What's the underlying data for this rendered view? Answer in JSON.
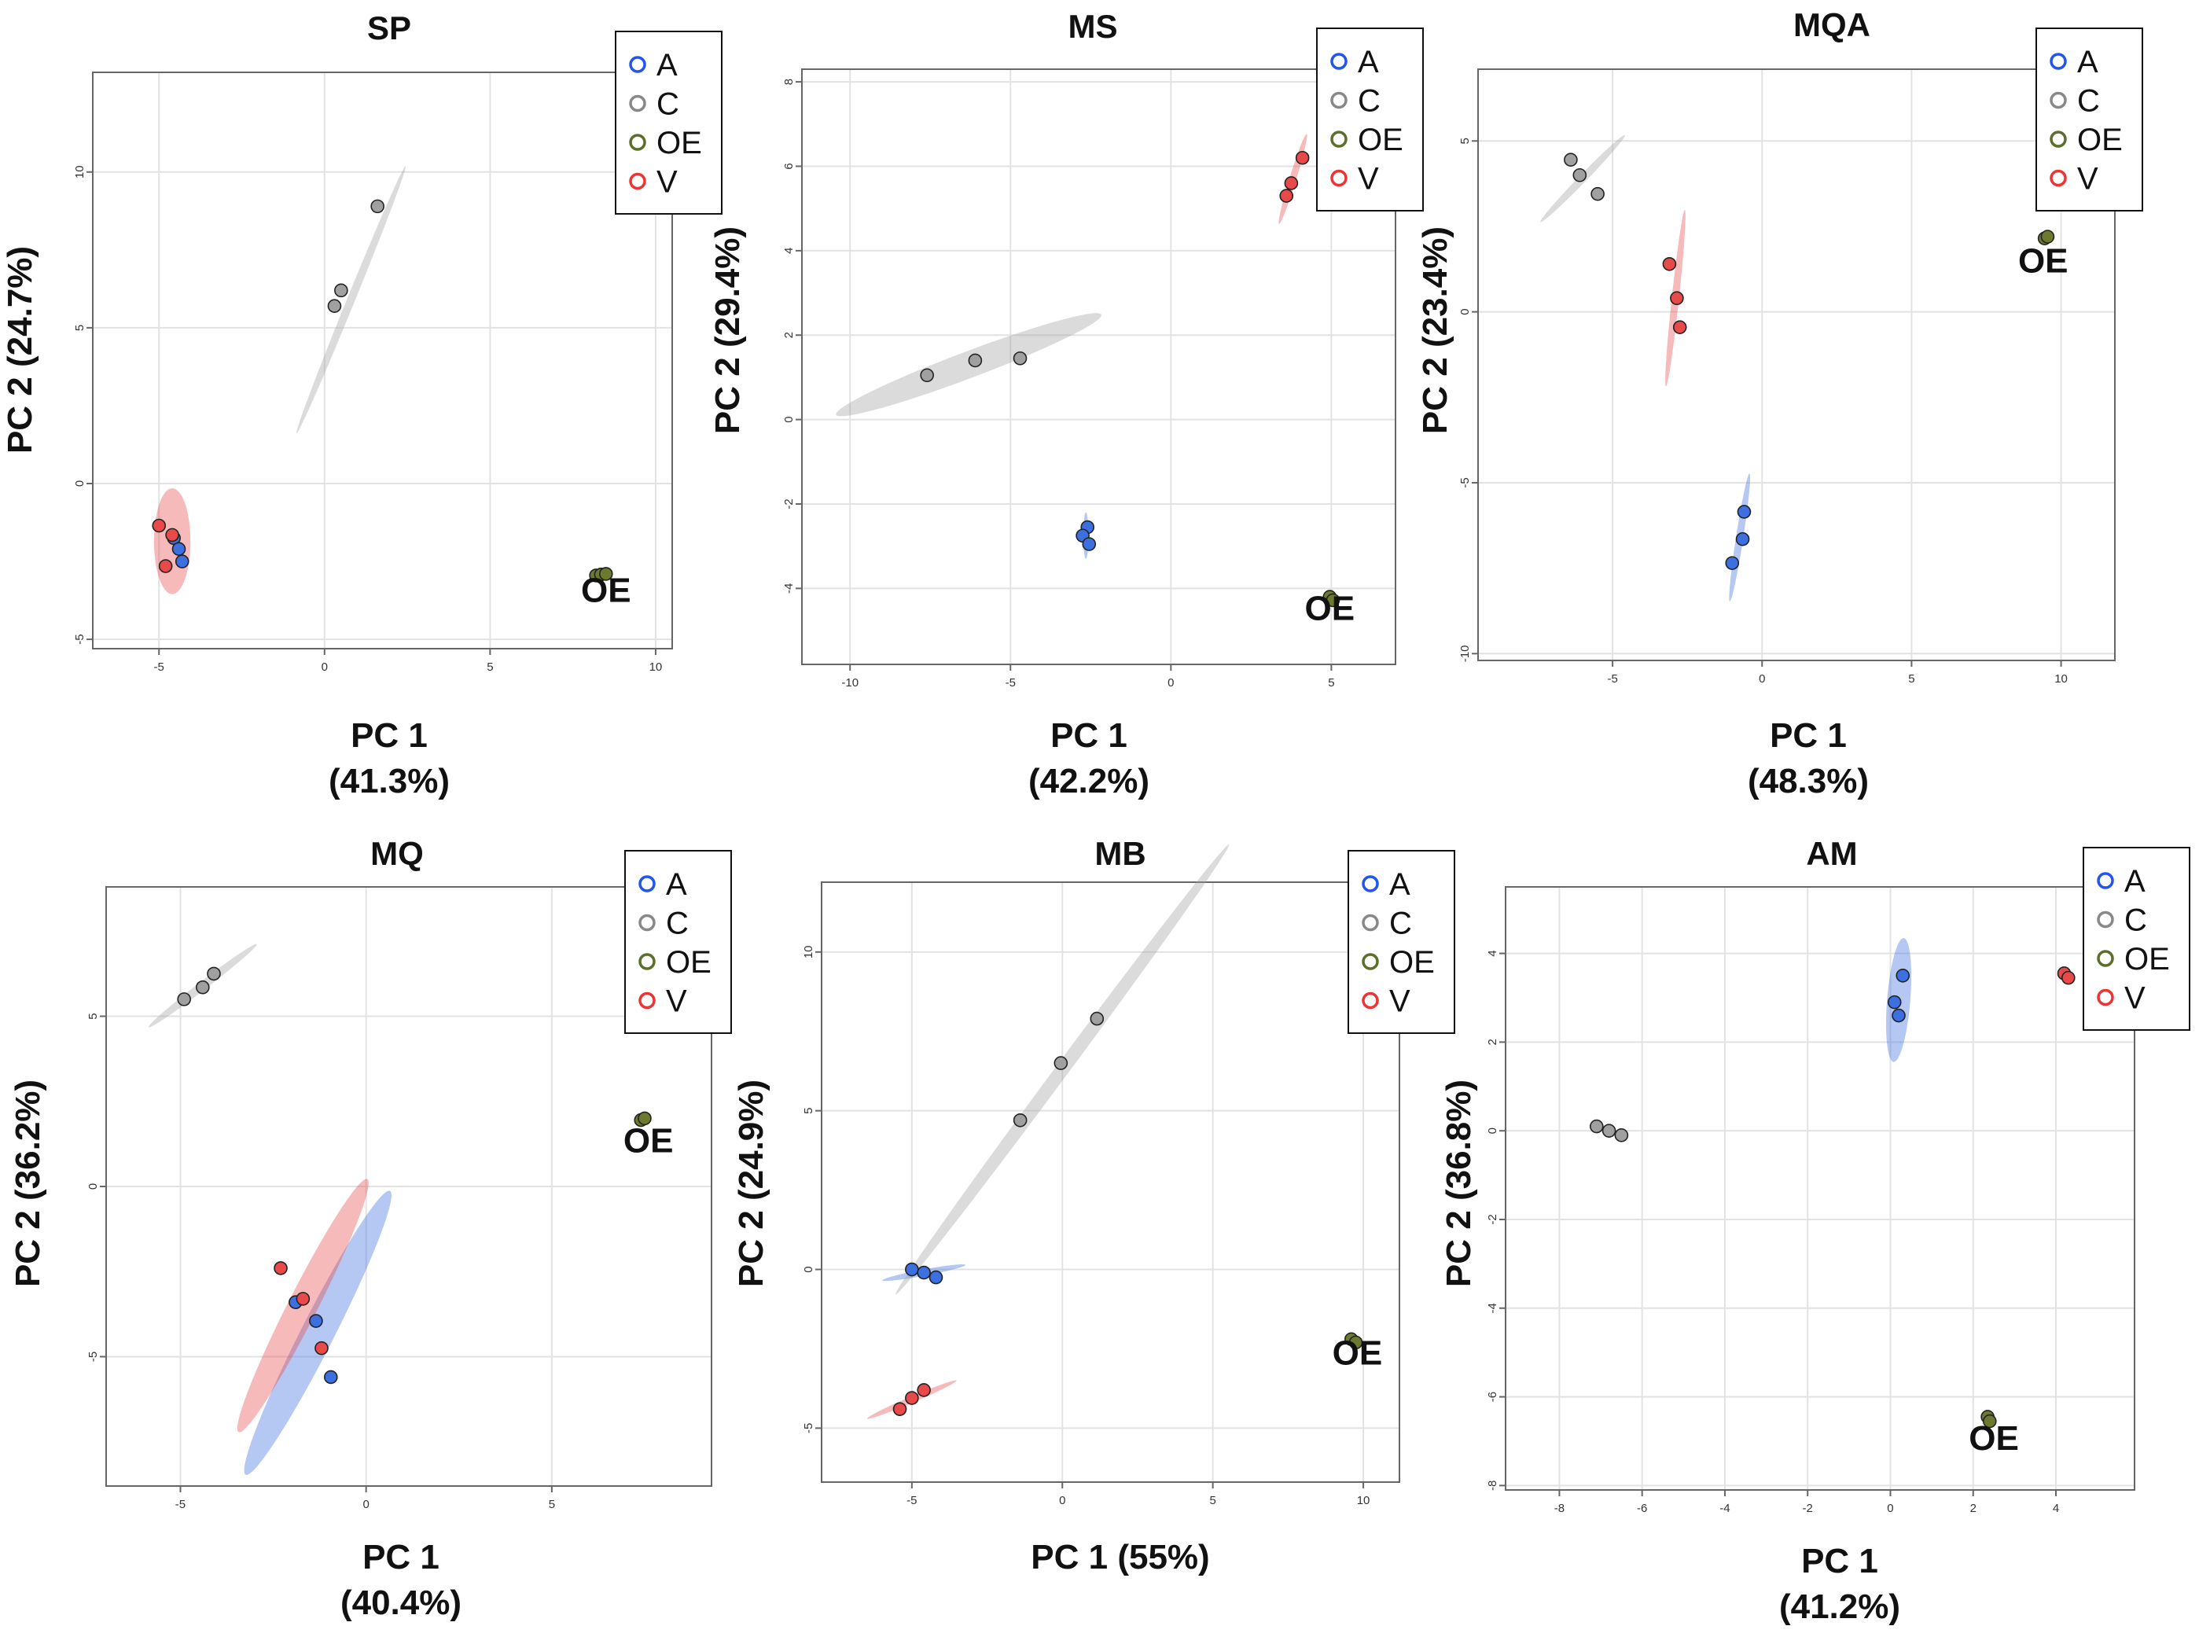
{
  "colors": {
    "A": "#3c6fe0",
    "C": "#a0a0a0",
    "OE": "#6b7a2e",
    "V": "#e84a4a"
  },
  "legend_edge": {
    "A": "#2255ee",
    "C": "#888888",
    "OE": "#5b6e2a",
    "V": "#ee3333"
  },
  "chart_data": [
    {
      "type": "scatter",
      "title": "SP",
      "xlabel": [
        "PC 1",
        "(41.3%)"
      ],
      "ylabel": "PC 2 (24.7%)",
      "xlim": [
        -7,
        10.5
      ],
      "ylim": [
        -5.3,
        13.2
      ],
      "xticks": [
        -5,
        0,
        5,
        10
      ],
      "yticks": [
        -5,
        0,
        5,
        10
      ],
      "legend": [
        "A",
        "C",
        "OE",
        "V"
      ],
      "legend_position": "top-right",
      "grid": true,
      "series": [
        {
          "name": "A",
          "points": [
            [
              -4.55,
              -1.75
            ],
            [
              -4.4,
              -2.1
            ],
            [
              -4.3,
              -2.5
            ]
          ],
          "ellipse": null
        },
        {
          "name": "C",
          "points": [
            [
              0.3,
              5.7
            ],
            [
              0.5,
              6.2
            ],
            [
              1.6,
              8.9
            ]
          ],
          "ellipse": {
            "c": [
              0.8,
              5.9
            ],
            "rx": 4.6,
            "ry": 0.12,
            "angle": 69
          }
        },
        {
          "name": "OE",
          "points": [
            [
              8.2,
              -2.95
            ],
            [
              8.35,
              -2.92
            ],
            [
              8.5,
              -2.9
            ]
          ],
          "ellipse": {
            "c": [
              8.35,
              -2.92
            ],
            "rx": 0.3,
            "ry": 0.07,
            "angle": 0
          }
        },
        {
          "name": "V",
          "points": [
            [
              -5.0,
              -1.35
            ],
            [
              -4.6,
              -1.65
            ],
            [
              -4.8,
              -2.65
            ]
          ],
          "ellipse": {
            "c": [
              -4.6,
              -1.85
            ],
            "rx": 1.7,
            "ry": 0.55,
            "angle": 90
          }
        }
      ],
      "annotations": [
        {
          "text": "OE",
          "x": 8.5,
          "y": -3.8
        }
      ]
    },
    {
      "type": "scatter",
      "title": "MS",
      "xlabel": [
        "PC 1",
        "(42.2%)"
      ],
      "ylabel": "PC 2 (29.4%)",
      "xlim": [
        -11.5,
        7
      ],
      "ylim": [
        -5.8,
        8.3
      ],
      "xticks": [
        -10,
        -5,
        0,
        5
      ],
      "yticks": [
        -4,
        -2,
        0,
        2,
        4,
        6,
        8
      ],
      "legend": [
        "A",
        "C",
        "OE",
        "V"
      ],
      "legend_position": "top-right",
      "grid": true,
      "series": [
        {
          "name": "A",
          "points": [
            [
              -2.6,
              -2.55
            ],
            [
              -2.75,
              -2.75
            ],
            [
              -2.55,
              -2.95
            ]
          ],
          "ellipse": {
            "c": [
              -2.65,
              -2.75
            ],
            "rx": 0.55,
            "ry": 0.08,
            "angle": 90
          }
        },
        {
          "name": "C",
          "points": [
            [
              -7.6,
              1.05
            ],
            [
              -6.1,
              1.4
            ],
            [
              -4.7,
              1.45
            ]
          ],
          "ellipse": {
            "c": [
              -6.3,
              1.3
            ],
            "rx": 4.3,
            "ry": 0.32,
            "angle": 16
          }
        },
        {
          "name": "OE",
          "points": [
            [
              4.95,
              -4.2
            ],
            [
              5.05,
              -4.28
            ]
          ],
          "ellipse": null
        },
        {
          "name": "V",
          "points": [
            [
              4.1,
              6.2
            ],
            [
              3.75,
              5.6
            ],
            [
              3.6,
              5.3
            ]
          ],
          "ellipse": {
            "c": [
              3.8,
              5.7
            ],
            "rx": 1.15,
            "ry": 0.1,
            "angle": 68
          }
        }
      ],
      "annotations": [
        {
          "text": "OE",
          "x": 4.95,
          "y": -4.75
        }
      ]
    },
    {
      "type": "scatter",
      "title": "MQA",
      "xlabel": [
        "PC 1",
        "(48.3%)"
      ],
      "ylabel": "PC 2 (23.4%)",
      "xlim": [
        -9.5,
        11.8
      ],
      "ylim": [
        -10.2,
        7.1
      ],
      "xticks": [
        -5,
        0,
        5,
        10
      ],
      "yticks": [
        -10,
        -5,
        0,
        5
      ],
      "legend": [
        "A",
        "C",
        "OE",
        "V"
      ],
      "legend_position": "top-right",
      "grid": true,
      "series": [
        {
          "name": "A",
          "points": [
            [
              -0.6,
              -5.85
            ],
            [
              -0.65,
              -6.65
            ],
            [
              -1.0,
              -7.35
            ]
          ],
          "ellipse": {
            "c": [
              -0.75,
              -6.6
            ],
            "rx": 1.9,
            "ry": 0.12,
            "angle": 80
          }
        },
        {
          "name": "C",
          "points": [
            [
              -6.4,
              4.45
            ],
            [
              -6.1,
              4.0
            ],
            [
              -5.5,
              3.45
            ]
          ],
          "ellipse": {
            "c": [
              -6.0,
              3.9
            ],
            "rx": 1.9,
            "ry": 0.12,
            "angle": 42
          }
        },
        {
          "name": "OE",
          "points": [
            [
              9.45,
              2.15
            ],
            [
              9.55,
              2.2
            ]
          ],
          "ellipse": null
        },
        {
          "name": "V",
          "points": [
            [
              -3.1,
              1.4
            ],
            [
              -2.85,
              0.4
            ],
            [
              -2.75,
              -0.45
            ]
          ],
          "ellipse": {
            "c": [
              -2.9,
              0.4
            ],
            "rx": 2.6,
            "ry": 0.12,
            "angle": 83
          }
        }
      ],
      "annotations": [
        {
          "text": "OE",
          "x": 9.4,
          "y": 1.15
        }
      ]
    },
    {
      "type": "scatter",
      "title": "MQ",
      "xlabel": [
        "PC 1",
        "(40.4%)"
      ],
      "ylabel": "PC 2 (36.2%)",
      "xlim": [
        -7,
        9.3
      ],
      "ylim": [
        -8.8,
        8.8
      ],
      "xticks": [
        -5,
        0,
        5
      ],
      "yticks": [
        -5,
        0,
        5
      ],
      "legend": [
        "A",
        "C",
        "OE",
        "V"
      ],
      "legend_position": "top-right",
      "grid": true,
      "series": [
        {
          "name": "A",
          "points": [
            [
              -1.9,
              -3.4
            ],
            [
              -1.35,
              -3.95
            ],
            [
              -0.95,
              -5.6
            ]
          ],
          "ellipse": {
            "c": [
              -1.3,
              -4.3
            ],
            "rx": 4.6,
            "ry": 0.45,
            "angle": 65
          }
        },
        {
          "name": "C",
          "points": [
            [
              -4.9,
              5.5
            ],
            [
              -4.4,
              5.85
            ],
            [
              -4.1,
              6.25
            ]
          ],
          "ellipse": {
            "c": [
              -4.4,
              5.9
            ],
            "rx": 1.9,
            "ry": 0.12,
            "angle": 40
          }
        },
        {
          "name": "OE",
          "points": [
            [
              7.4,
              1.95
            ],
            [
              7.5,
              2.0
            ]
          ],
          "ellipse": null
        },
        {
          "name": "V",
          "points": [
            [
              -2.3,
              -2.4
            ],
            [
              -1.7,
              -3.3
            ],
            [
              -1.2,
              -4.75
            ]
          ],
          "ellipse": {
            "c": [
              -1.7,
              -3.5
            ],
            "rx": 4.1,
            "ry": 0.4,
            "angle": 65
          }
        }
      ],
      "annotations": [
        {
          "text": "OE",
          "x": 7.6,
          "y": 1.0
        }
      ]
    },
    {
      "type": "scatter",
      "title": "MB",
      "xlabel": [
        "PC 1 (55%)"
      ],
      "ylabel": "PC 2 (24.9%)",
      "xlim": [
        -8,
        11.2
      ],
      "ylim": [
        -6.7,
        12.2
      ],
      "xticks": [
        -5,
        0,
        5,
        10
      ],
      "yticks": [
        -5,
        0,
        5,
        10
      ],
      "legend": [
        "A",
        "C",
        "OE",
        "V"
      ],
      "legend_position": "top-right",
      "grid": true,
      "series": [
        {
          "name": "A",
          "points": [
            [
              -5.0,
              0.0
            ],
            [
              -4.6,
              -0.1
            ],
            [
              -4.2,
              -0.25
            ]
          ],
          "ellipse": {
            "c": [
              -4.6,
              -0.1
            ],
            "rx": 1.4,
            "ry": 0.1,
            "angle": 10
          }
        },
        {
          "name": "C",
          "points": [
            [
              -1.4,
              4.7
            ],
            [
              -0.05,
              6.5
            ],
            [
              1.15,
              7.9
            ]
          ],
          "ellipse": {
            "c": [
              0.0,
              6.3
            ],
            "rx": 9.0,
            "ry": 0.22,
            "angle": 52
          }
        },
        {
          "name": "OE",
          "points": [
            [
              9.6,
              -2.2
            ],
            [
              9.75,
              -2.3
            ]
          ],
          "ellipse": null
        },
        {
          "name": "V",
          "points": [
            [
              -5.4,
              -4.4
            ],
            [
              -5.0,
              -4.05
            ],
            [
              -4.6,
              -3.8
            ]
          ],
          "ellipse": {
            "c": [
              -5.0,
              -4.1
            ],
            "rx": 1.6,
            "ry": 0.1,
            "angle": 22
          }
        }
      ],
      "annotations": [
        {
          "text": "OE",
          "x": 9.8,
          "y": -3.0
        }
      ]
    },
    {
      "type": "scatter",
      "title": "AM",
      "xlabel": [
        "PC 1",
        "(41.2%)"
      ],
      "ylabel": "PC 2 (36.8%)",
      "xlim": [
        -9.3,
        5.9
      ],
      "ylim": [
        -8.1,
        5.5
      ],
      "xticks": [
        -8,
        -6,
        -4,
        -2,
        0,
        2,
        4
      ],
      "yticks": [
        -8,
        -6,
        -4,
        -2,
        0,
        2,
        4
      ],
      "legend": [
        "A",
        "C",
        "OE",
        "V"
      ],
      "legend_position": "top-right",
      "grid": true,
      "series": [
        {
          "name": "A",
          "points": [
            [
              0.3,
              3.5
            ],
            [
              0.1,
              2.9
            ],
            [
              0.2,
              2.6
            ]
          ],
          "ellipse": {
            "c": [
              0.2,
              2.95
            ],
            "rx": 1.4,
            "ry": 0.28,
            "angle": 85
          }
        },
        {
          "name": "C",
          "points": [
            [
              -7.1,
              0.1
            ],
            [
              -6.8,
              0.0
            ],
            [
              -6.5,
              -0.1
            ]
          ],
          "ellipse": null
        },
        {
          "name": "OE",
          "points": [
            [
              2.35,
              -6.45
            ],
            [
              2.4,
              -6.55
            ]
          ],
          "ellipse": null
        },
        {
          "name": "V",
          "points": [
            [
              4.2,
              3.55
            ],
            [
              4.3,
              3.45
            ]
          ],
          "ellipse": null
        }
      ],
      "annotations": [
        {
          "text": "OE",
          "x": 2.5,
          "y": -7.2
        }
      ]
    }
  ]
}
